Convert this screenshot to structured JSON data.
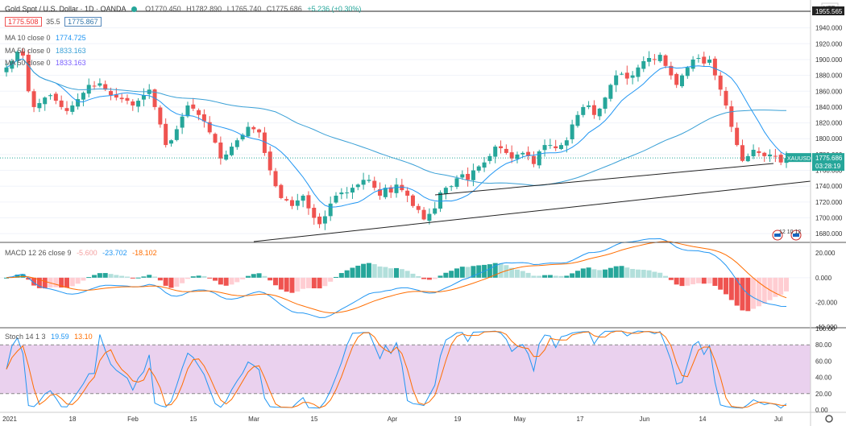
{
  "header": {
    "symbol_title": "Gold Spot / U.S. Dollar · 1D · OANDA",
    "open": "O1770.450",
    "high": "H1782.890",
    "low": "L1765.740",
    "close": "C1775.686",
    "change": "+5.236 (+0.30%)",
    "sell_price": "1775.508",
    "spread": "35.5",
    "buy_price": "1775.867"
  },
  "indicators": {
    "ma10_label": "MA 10 close 0",
    "ma10_value": "1774.725",
    "ma50_label": "MA 50 close 0",
    "ma50_value": "1833.163",
    "ma50b_label": "MA 50 close 0",
    "ma50b_value": "1833.163",
    "macd_label": "MACD 12 26 close 9",
    "macd_hist": "-5.600",
    "macd_line": "-23.702",
    "macd_signal": "-18.102",
    "stoch_label": "Stoch 14 1 3",
    "stoch_k": "19.59",
    "stoch_d": "13.10"
  },
  "price_axis": {
    "currency": "USD",
    "ticks": [
      "1940.000",
      "1920.000",
      "1900.000",
      "1880.000",
      "1860.000",
      "1840.000",
      "1820.000",
      "1800.000",
      "1780.000",
      "1760.000",
      "1740.000",
      "1720.000",
      "1700.000",
      "1680.000"
    ],
    "top_label": "1955.565",
    "last_price_label": "1775.686",
    "symbol_tag": "XAUUSD",
    "countdown": "03:28:19"
  },
  "macd_axis": {
    "ticks": [
      "20.000",
      "0.000",
      "-20.000",
      "-40.000"
    ]
  },
  "stoch_axis": {
    "ticks": [
      "100.00",
      "80.00",
      "60.00",
      "40.00",
      "20.00",
      "0.00"
    ]
  },
  "time_axis": {
    "ticks": [
      "2021",
      "18",
      "Feb",
      "15",
      "Mar",
      "15",
      "Apr",
      "19",
      "May",
      "17",
      "Jun",
      "14",
      "Jul"
    ]
  },
  "events_label": "12 10 12",
  "colors": {
    "up": "#26a69a",
    "down": "#ef5350",
    "ma10": "#2196f3",
    "ma50": "#3aa0d6",
    "macd_line": "#2196f3",
    "signal_line": "#ff6d00",
    "stoch_k": "#2196f3",
    "stoch_d": "#ff6d00",
    "stoch_band": "#e1bee7"
  },
  "chart_data": {
    "type": "candlestick",
    "title": "Gold Spot / U.S. Dollar · 1D · OANDA",
    "ylim": [
      1670,
      1960
    ],
    "closes": [
      1890,
      1898,
      1910,
      1905,
      1860,
      1840,
      1845,
      1852,
      1855,
      1848,
      1840,
      1835,
      1842,
      1850,
      1858,
      1868,
      1866,
      1870,
      1862,
      1855,
      1852,
      1850,
      1848,
      1842,
      1848,
      1855,
      1862,
      1840,
      1818,
      1792,
      1798,
      1812,
      1828,
      1842,
      1838,
      1830,
      1822,
      1808,
      1795,
      1775,
      1780,
      1790,
      1798,
      1805,
      1815,
      1812,
      1808,
      1782,
      1760,
      1740,
      1725,
      1722,
      1715,
      1722,
      1728,
      1712,
      1700,
      1692,
      1702,
      1718,
      1728,
      1732,
      1732,
      1738,
      1742,
      1748,
      1748,
      1738,
      1728,
      1738,
      1732,
      1742,
      1735,
      1728,
      1715,
      1710,
      1698,
      1705,
      1712,
      1732,
      1738,
      1740,
      1750,
      1755,
      1748,
      1760,
      1765,
      1770,
      1778,
      1790,
      1788,
      1782,
      1775,
      1780,
      1782,
      1778,
      1768,
      1784,
      1792,
      1792,
      1788,
      1792,
      1798,
      1818,
      1830,
      1840,
      1842,
      1830,
      1838,
      1852,
      1868,
      1880,
      1882,
      1876,
      1880,
      1890,
      1898,
      1902,
      1900,
      1906,
      1892,
      1880,
      1868,
      1880,
      1890,
      1900,
      1902,
      1895,
      1900,
      1880,
      1862,
      1842,
      1815,
      1792,
      1772,
      1778,
      1786,
      1782,
      1778,
      1780,
      1778,
      1770,
      1775.686
    ],
    "ma10_values": "derived",
    "trendlines": [
      {
        "from": [
          "Mar",
          1680
        ],
        "to": [
          "Jul",
          1740
        ]
      },
      {
        "from": [
          "Apr 13",
          1735
        ],
        "to": [
          "Jul",
          1768
        ]
      }
    ]
  }
}
